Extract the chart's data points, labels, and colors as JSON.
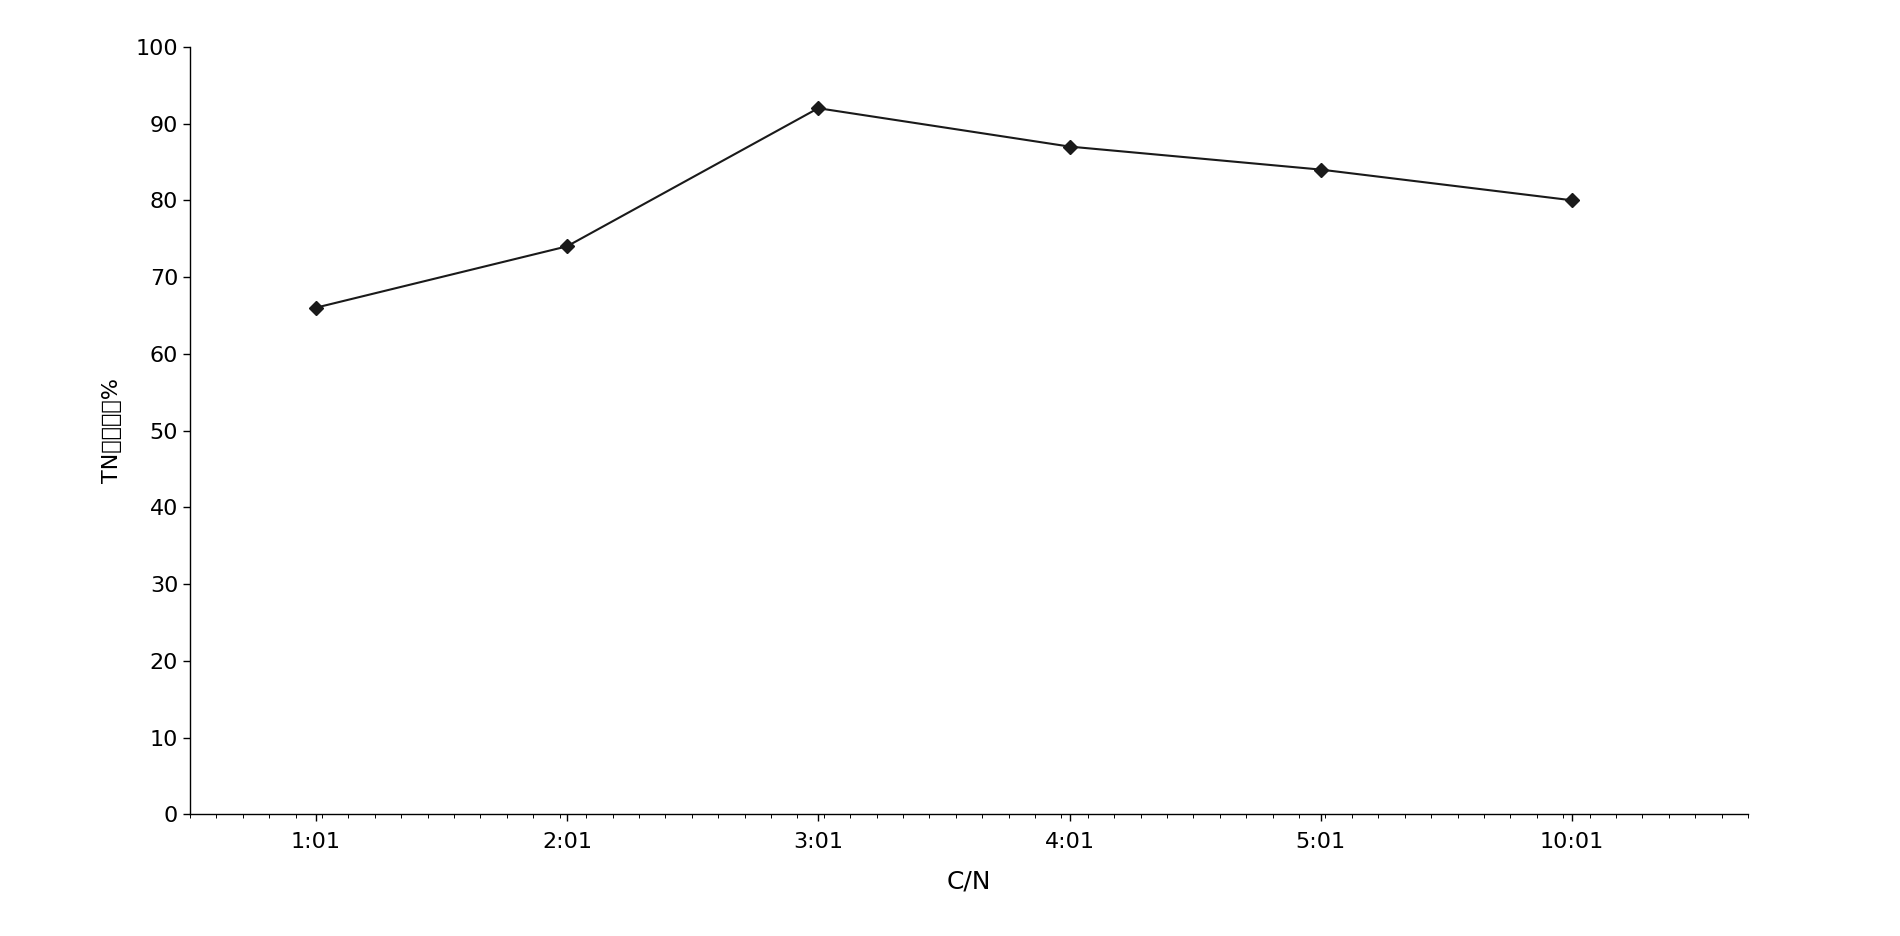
{
  "x_labels": [
    "1:01",
    "2:01",
    "3:01",
    "4:01",
    "5:01",
    "10:01"
  ],
  "x_positions": [
    0,
    1,
    2,
    3,
    4,
    5
  ],
  "y_values": [
    66,
    74,
    92,
    87,
    84,
    80
  ],
  "xlabel": "C/N",
  "ylabel": "TN去除率（%",
  "ylim": [
    0,
    100
  ],
  "yticks": [
    0,
    10,
    20,
    30,
    40,
    50,
    60,
    70,
    80,
    90,
    100
  ],
  "line_color": "#1a1a1a",
  "marker": "D",
  "marker_size": 7,
  "marker_facecolor": "#1a1a1a",
  "linewidth": 1.5,
  "background_color": "#ffffff",
  "xlabel_fontsize": 18,
  "ylabel_fontsize": 16,
  "tick_fontsize": 16
}
